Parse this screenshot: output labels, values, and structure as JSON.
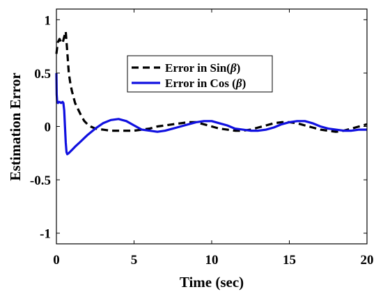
{
  "chart_data": {
    "type": "line",
    "xlabel": "Time (sec)",
    "ylabel": "Estimation Error",
    "xlim": [
      0,
      20
    ],
    "ylim": [
      -1.1,
      1.1
    ],
    "x_ticks": [
      "0",
      "5",
      "10",
      "15",
      "20"
    ],
    "y_ticks": [
      "1",
      "0.5",
      "0",
      "-0.5",
      "-1"
    ],
    "grid": false,
    "legend_position": "top-center",
    "series": [
      {
        "name": "Error in Sin(β)",
        "legend_prefix": "Error in Sin(",
        "legend_symbol": "β",
        "legend_suffix": ")",
        "color": "#000000",
        "style": "dashed",
        "x": [
          0,
          0.05,
          0.1,
          0.2,
          0.3,
          0.4,
          0.5,
          0.6,
          0.7,
          0.8,
          0.9,
          1.0,
          1.2,
          1.4,
          1.6,
          1.8,
          2.0,
          2.2,
          2.5,
          3.0,
          3.5,
          4.0,
          4.5,
          5.0,
          5.5,
          6.0,
          6.5,
          7.0,
          7.5,
          8.0,
          8.5,
          9.0,
          9.5,
          10.0,
          10.5,
          11.0,
          11.5,
          12.0,
          12.5,
          13.0,
          13.5,
          14.0,
          14.5,
          15.0,
          15.5,
          16.0,
          16.5,
          17.0,
          17.5,
          18.0,
          18.5,
          19.0,
          19.5,
          20.0
        ],
        "y": [
          0.68,
          0.74,
          0.79,
          0.82,
          0.79,
          0.78,
          0.84,
          0.89,
          0.7,
          0.5,
          0.4,
          0.33,
          0.22,
          0.16,
          0.1,
          0.05,
          0.02,
          0.0,
          -0.02,
          -0.03,
          -0.04,
          -0.04,
          -0.04,
          -0.04,
          -0.03,
          -0.02,
          0.0,
          0.01,
          0.02,
          0.03,
          0.04,
          0.04,
          0.02,
          0.0,
          -0.02,
          -0.03,
          -0.04,
          -0.04,
          -0.03,
          -0.01,
          0.01,
          0.03,
          0.04,
          0.04,
          0.03,
          0.01,
          -0.01,
          -0.03,
          -0.04,
          -0.05,
          -0.04,
          -0.02,
          0.0,
          0.02
        ]
      },
      {
        "name": "Error in Cos (β)",
        "legend_prefix": "Error in Cos (",
        "legend_symbol": "β",
        "legend_suffix": ")",
        "color": "#1010e0",
        "style": "solid",
        "x": [
          0,
          0.02,
          0.05,
          0.1,
          0.15,
          0.2,
          0.3,
          0.4,
          0.45,
          0.5,
          0.55,
          0.6,
          0.65,
          0.7,
          0.8,
          1.0,
          1.2,
          1.5,
          2.0,
          2.5,
          3.0,
          3.5,
          4.0,
          4.5,
          5.0,
          5.5,
          6.0,
          6.5,
          7.0,
          7.5,
          8.0,
          8.5,
          9.0,
          9.5,
          10.0,
          10.5,
          11.0,
          11.5,
          12.0,
          12.5,
          13.0,
          13.5,
          14.0,
          14.5,
          15.0,
          15.5,
          16.0,
          16.5,
          17.0,
          17.5,
          18.0,
          18.5,
          19.0,
          19.5,
          20.0
        ],
        "y": [
          0.5,
          0.3,
          0.23,
          0.22,
          0.23,
          0.23,
          0.22,
          0.23,
          0.22,
          0.15,
          0.0,
          -0.15,
          -0.24,
          -0.26,
          -0.25,
          -0.22,
          -0.19,
          -0.15,
          -0.08,
          -0.02,
          0.03,
          0.06,
          0.07,
          0.05,
          0.01,
          -0.03,
          -0.04,
          -0.05,
          -0.04,
          -0.02,
          0.0,
          0.02,
          0.04,
          0.05,
          0.05,
          0.03,
          0.01,
          -0.02,
          -0.03,
          -0.04,
          -0.04,
          -0.03,
          -0.01,
          0.02,
          0.04,
          0.05,
          0.05,
          0.03,
          0.0,
          -0.02,
          -0.03,
          -0.04,
          -0.04,
          -0.03,
          -0.03
        ]
      }
    ]
  }
}
